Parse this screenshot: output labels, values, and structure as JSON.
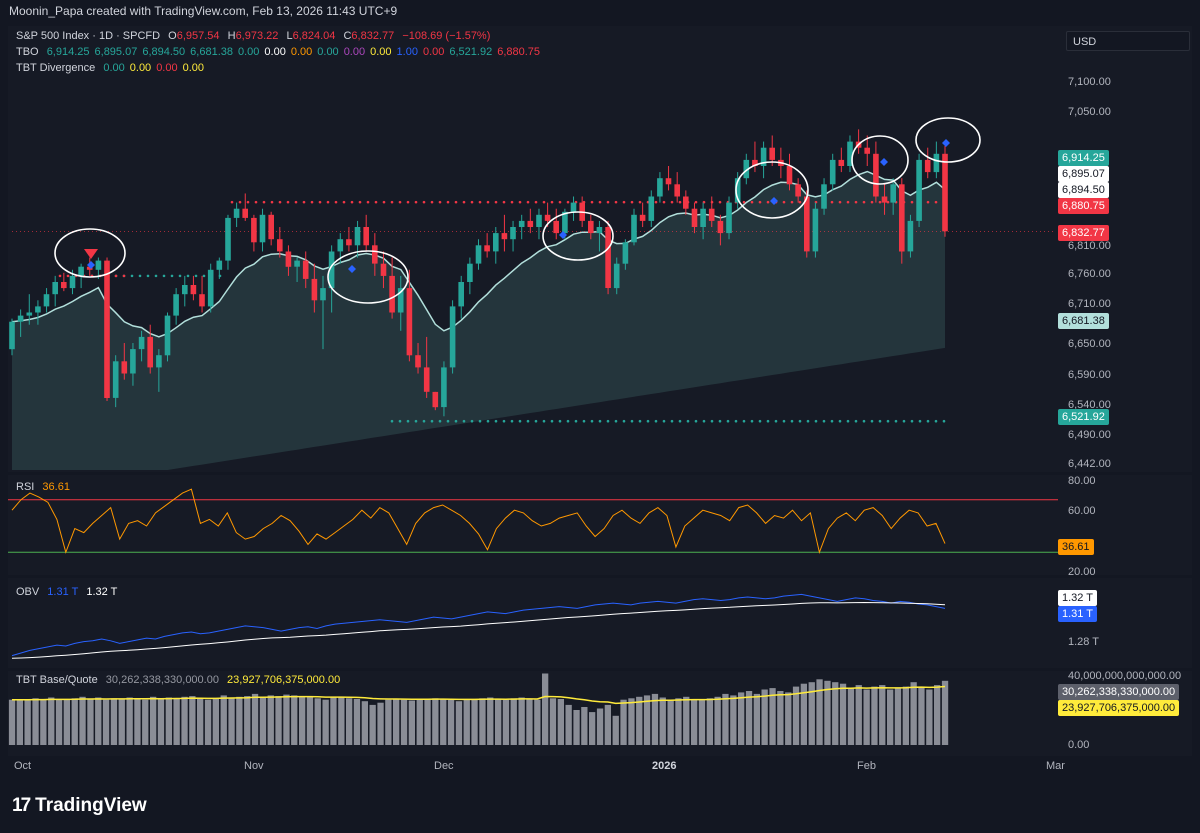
{
  "header": {
    "text": "Moonin_Papa created with TradingView.com, Feb 13, 2026 11:43 UTC+9"
  },
  "main_panel": {
    "legend_title": "S&P 500 Index · 1D · SPCFD",
    "ohlc": {
      "o_label": "O",
      "o": "6,957.54",
      "h_label": "H",
      "h": "6,973.22",
      "l_label": "L",
      "l": "6,824.04",
      "c_label": "C",
      "c": "6,832.77",
      "change": "−108.69 (−1.57%)"
    },
    "tbo_label": "TBO",
    "tbo_values": [
      {
        "v": "6,914.25",
        "color": "#26a69a"
      },
      {
        "v": "6,895.07",
        "color": "#26a69a"
      },
      {
        "v": "6,894.50",
        "color": "#26a69a"
      },
      {
        "v": "6,681.38",
        "color": "#26a69a"
      },
      {
        "v": "0.00",
        "color": "#26a69a"
      },
      {
        "v": "0.00",
        "color": "#ffffff"
      },
      {
        "v": "0.00",
        "color": "#ff9800"
      },
      {
        "v": "0.00",
        "color": "#26a69a"
      },
      {
        "v": "0.00",
        "color": "#ab47bc"
      },
      {
        "v": "0.00",
        "color": "#ffeb3b"
      },
      {
        "v": "1.00",
        "color": "#2962ff"
      },
      {
        "v": "0.00",
        "color": "#f23645"
      },
      {
        "v": "6,521.92",
        "color": "#26a69a"
      },
      {
        "v": "6,880.75",
        "color": "#f23645"
      }
    ],
    "div_label": "TBT Divergence",
    "div_values": [
      {
        "v": "0.00",
        "color": "#26a69a"
      },
      {
        "v": "0.00",
        "color": "#ffeb3b"
      },
      {
        "v": "0.00",
        "color": "#f23645"
      },
      {
        "v": "0.00",
        "color": "#ffeb3b"
      }
    ],
    "currency": "USD",
    "axis_ticks": [
      "7,100.00",
      "7,050.00",
      "6,810.00",
      "6,760.00",
      "6,710.00",
      "6,650.00",
      "6,590.00",
      "6,540.00",
      "6,490.00",
      "6,442.00"
    ],
    "price_tags": [
      {
        "v": "6,914.25",
        "bg": "#26a69a",
        "fg": "#ffffff"
      },
      {
        "v": "6,895.07",
        "bg": "#ffffff",
        "fg": "#131722"
      },
      {
        "v": "6,894.50",
        "bg": "#ffffff",
        "fg": "#131722"
      },
      {
        "v": "6,880.75",
        "bg": "#f23645",
        "fg": "#ffffff"
      },
      {
        "v": "6,832.77",
        "bg": "#f23645",
        "fg": "#ffffff"
      },
      {
        "v": "6,681.38",
        "bg": "#b2dfdb",
        "fg": "#131722"
      },
      {
        "v": "6,521.92",
        "bg": "#26a69a",
        "fg": "#ffffff"
      }
    ]
  },
  "rsi_panel": {
    "label": "RSI",
    "value": "36.61",
    "value_color": "#ff9800",
    "axis_ticks": [
      "80.00",
      "60.00",
      "20.00"
    ],
    "upper_band": 70,
    "lower_band": 30,
    "band_colors": {
      "upper": "#f23645",
      "lower": "#4caf50"
    }
  },
  "obv_panel": {
    "label": "OBV",
    "value1": "1.31 T",
    "value1_color": "#2962ff",
    "value2": "1.32 T",
    "value2_color": "#ffffff",
    "axis_ticks": [
      "1.28 T"
    ],
    "tags": [
      {
        "v": "1.32 T",
        "bg": "#ffffff",
        "fg": "#131722"
      },
      {
        "v": "1.31 T",
        "bg": "#2962ff",
        "fg": "#ffffff"
      }
    ]
  },
  "volume_panel": {
    "label": "TBT Base/Quote",
    "value1": "30,262,338,330,000.00",
    "value1_color": "#9598a1",
    "value2": "23,927,706,375,000.00",
    "value2_color": "#ffeb3b",
    "axis_ticks": [
      "40,000,000,000,000.00",
      "0.00"
    ],
    "tags": [
      {
        "v": "30,262,338,330,000.00",
        "bg": "#5d606b",
        "fg": "#ffffff"
      },
      {
        "v": "23,927,706,375,000.00",
        "bg": "#ffeb3b",
        "fg": "#131722"
      }
    ]
  },
  "x_axis": {
    "labels": [
      "Oct",
      "Nov",
      "Dec",
      "2026",
      "Feb",
      "Mar"
    ]
  },
  "footer": {
    "brand": "TradingView"
  },
  "chart_data": {
    "type": "line",
    "price_type": "candlestick",
    "ylim": [
      6442,
      7130
    ],
    "categories": [
      "Oct",
      "Nov",
      "Dec",
      "2026",
      "Feb",
      "Mar"
    ],
    "candles": [
      [
        6640,
        6690,
        6630,
        6685
      ],
      [
        6685,
        6705,
        6660,
        6695
      ],
      [
        6695,
        6730,
        6680,
        6700
      ],
      [
        6700,
        6720,
        6680,
        6710
      ],
      [
        6710,
        6740,
        6700,
        6730
      ],
      [
        6730,
        6760,
        6710,
        6750
      ],
      [
        6750,
        6765,
        6735,
        6740
      ],
      [
        6740,
        6770,
        6730,
        6760
      ],
      [
        6760,
        6780,
        6740,
        6775
      ],
      [
        6775,
        6790,
        6760,
        6770
      ],
      [
        6770,
        6790,
        6755,
        6785
      ],
      [
        6785,
        6790,
        6555,
        6560
      ],
      [
        6560,
        6630,
        6545,
        6620
      ],
      [
        6620,
        6650,
        6590,
        6600
      ],
      [
        6600,
        6650,
        6580,
        6640
      ],
      [
        6640,
        6670,
        6620,
        6660
      ],
      [
        6660,
        6680,
        6600,
        6610
      ],
      [
        6610,
        6640,
        6570,
        6630
      ],
      [
        6630,
        6700,
        6620,
        6695
      ],
      [
        6695,
        6740,
        6680,
        6730
      ],
      [
        6730,
        6760,
        6710,
        6745
      ],
      [
        6745,
        6760,
        6720,
        6730
      ],
      [
        6730,
        6760,
        6700,
        6710
      ],
      [
        6710,
        6780,
        6700,
        6770
      ],
      [
        6770,
        6790,
        6755,
        6785
      ],
      [
        6785,
        6860,
        6770,
        6855
      ],
      [
        6855,
        6880,
        6840,
        6870
      ],
      [
        6870,
        6895,
        6850,
        6855
      ],
      [
        6855,
        6860,
        6800,
        6815
      ],
      [
        6815,
        6870,
        6800,
        6860
      ],
      [
        6860,
        6865,
        6810,
        6820
      ],
      [
        6820,
        6840,
        6790,
        6800
      ],
      [
        6800,
        6810,
        6760,
        6775
      ],
      [
        6775,
        6790,
        6750,
        6785
      ],
      [
        6785,
        6800,
        6740,
        6755
      ],
      [
        6755,
        6780,
        6700,
        6720
      ],
      [
        6720,
        6760,
        6640,
        6740
      ],
      [
        6740,
        6810,
        6700,
        6800
      ],
      [
        6800,
        6830,
        6780,
        6820
      ],
      [
        6820,
        6840,
        6800,
        6810
      ],
      [
        6810,
        6850,
        6790,
        6840
      ],
      [
        6840,
        6860,
        6800,
        6810
      ],
      [
        6810,
        6830,
        6760,
        6780
      ],
      [
        6780,
        6800,
        6740,
        6760
      ],
      [
        6760,
        6790,
        6690,
        6700
      ],
      [
        6700,
        6760,
        6670,
        6740
      ],
      [
        6740,
        6770,
        6620,
        6630
      ],
      [
        6630,
        6650,
        6600,
        6610
      ],
      [
        6610,
        6660,
        6560,
        6570
      ],
      [
        6570,
        6570,
        6540,
        6545
      ],
      [
        6545,
        6620,
        6530,
        6610
      ],
      [
        6610,
        6720,
        6600,
        6710
      ],
      [
        6710,
        6760,
        6690,
        6750
      ],
      [
        6750,
        6790,
        6730,
        6780
      ],
      [
        6780,
        6820,
        6770,
        6810
      ],
      [
        6810,
        6830,
        6790,
        6800
      ],
      [
        6800,
        6840,
        6780,
        6830
      ],
      [
        6830,
        6860,
        6800,
        6820
      ],
      [
        6820,
        6850,
        6800,
        6840
      ],
      [
        6840,
        6860,
        6820,
        6850
      ],
      [
        6850,
        6870,
        6830,
        6840
      ],
      [
        6840,
        6870,
        6820,
        6860
      ],
      [
        6860,
        6880,
        6840,
        6850
      ],
      [
        6850,
        6870,
        6820,
        6830
      ],
      [
        6830,
        6870,
        6820,
        6865
      ],
      [
        6865,
        6890,
        6850,
        6880
      ],
      [
        6880,
        6890,
        6840,
        6850
      ],
      [
        6850,
        6860,
        6820,
        6830
      ],
      [
        6830,
        6850,
        6800,
        6840
      ],
      [
        6840,
        6850,
        6730,
        6740
      ],
      [
        6740,
        6790,
        6730,
        6780
      ],
      [
        6780,
        6820,
        6770,
        6815
      ],
      [
        6815,
        6870,
        6810,
        6860
      ],
      [
        6860,
        6880,
        6840,
        6850
      ],
      [
        6850,
        6900,
        6840,
        6890
      ],
      [
        6890,
        6930,
        6880,
        6920
      ],
      [
        6920,
        6940,
        6900,
        6910
      ],
      [
        6910,
        6930,
        6880,
        6890
      ],
      [
        6890,
        6900,
        6860,
        6870
      ],
      [
        6870,
        6880,
        6830,
        6840
      ],
      [
        6840,
        6880,
        6820,
        6870
      ],
      [
        6870,
        6890,
        6840,
        6850
      ],
      [
        6850,
        6860,
        6810,
        6830
      ],
      [
        6830,
        6890,
        6820,
        6880
      ],
      [
        6880,
        6930,
        6870,
        6920
      ],
      [
        6920,
        6960,
        6910,
        6950
      ],
      [
        6950,
        6980,
        6930,
        6940
      ],
      [
        6940,
        6980,
        6920,
        6970
      ],
      [
        6970,
        6990,
        6940,
        6950
      ],
      [
        6950,
        6970,
        6920,
        6940
      ],
      [
        6940,
        6960,
        6900,
        6910
      ],
      [
        6910,
        6920,
        6880,
        6890
      ],
      [
        6890,
        6900,
        6790,
        6800
      ],
      [
        6800,
        6880,
        6790,
        6870
      ],
      [
        6870,
        6920,
        6860,
        6910
      ],
      [
        6910,
        6960,
        6900,
        6950
      ],
      [
        6950,
        6970,
        6930,
        6940
      ],
      [
        6940,
        6990,
        6930,
        6980
      ],
      [
        6980,
        7000,
        6960,
        6970
      ],
      [
        6970,
        6990,
        6940,
        6960
      ],
      [
        6960,
        6980,
        6880,
        6890
      ],
      [
        6890,
        6910,
        6860,
        6880
      ],
      [
        6880,
        6920,
        6860,
        6910
      ],
      [
        6910,
        6920,
        6780,
        6800
      ],
      [
        6800,
        6860,
        6790,
        6850
      ],
      [
        6850,
        6960,
        6840,
        6950
      ],
      [
        6950,
        6970,
        6920,
        6930
      ],
      [
        6930,
        6980,
        6920,
        6960
      ],
      [
        6960,
        6973,
        6824,
        6833
      ]
    ],
    "rsi": [
      62,
      70,
      75,
      72,
      68,
      55,
      30,
      48,
      45,
      52,
      58,
      64,
      40,
      52,
      54,
      50,
      60,
      65,
      70,
      75,
      78,
      52,
      55,
      50,
      60,
      45,
      40,
      42,
      48,
      52,
      58,
      54,
      46,
      36,
      44,
      40,
      45,
      50,
      55,
      62,
      56,
      64,
      60,
      48,
      36,
      52,
      60,
      64,
      66,
      62,
      58,
      52,
      44,
      32,
      48,
      56,
      62,
      60,
      54,
      50,
      52,
      56,
      58,
      60,
      50,
      42,
      48,
      58,
      62,
      56,
      52,
      60,
      64,
      58,
      34,
      50,
      56,
      62,
      60,
      58,
      54,
      64,
      66,
      60,
      52,
      58,
      56,
      62,
      54,
      60,
      30,
      48,
      56,
      60,
      54,
      62,
      64,
      58,
      48,
      56,
      62,
      60,
      50,
      52,
      36.61
    ],
    "obv": [
      0.3,
      0.33,
      0.36,
      0.38,
      0.4,
      0.42,
      0.41,
      0.44,
      0.46,
      0.47,
      0.49,
      0.47,
      0.44,
      0.46,
      0.48,
      0.5,
      0.49,
      0.52,
      0.54,
      0.56,
      0.57,
      0.55,
      0.56,
      0.58,
      0.6,
      0.62,
      0.64,
      0.63,
      0.62,
      0.6,
      0.58,
      0.6,
      0.62,
      0.63,
      0.61,
      0.64,
      0.66,
      0.67,
      0.68,
      0.69,
      0.7,
      0.71,
      0.7,
      0.69,
      0.68,
      0.7,
      0.72,
      0.74,
      0.73,
      0.72,
      0.74,
      0.76,
      0.78,
      0.8,
      0.79,
      0.78,
      0.8,
      0.82,
      0.83,
      0.84,
      0.85,
      0.86,
      0.85,
      0.84,
      0.86,
      0.88,
      0.89,
      0.9,
      0.89,
      0.88,
      0.9,
      0.91,
      0.92,
      0.91,
      0.9,
      0.92,
      0.94,
      0.95,
      0.94,
      0.93,
      0.94,
      0.96,
      0.97,
      0.96,
      0.95,
      0.96,
      0.98,
      0.99,
      1.0,
      0.98,
      0.96,
      0.94,
      0.92,
      0.94,
      0.96,
      0.95,
      0.93,
      0.92,
      0.9,
      0.92,
      0.91,
      0.89,
      0.88,
      0.86,
      0.84
    ],
    "volume": [
      0.62,
      0.63,
      0.61,
      0.64,
      0.62,
      0.65,
      0.63,
      0.62,
      0.64,
      0.66,
      0.63,
      0.65,
      0.62,
      0.64,
      0.63,
      0.65,
      0.64,
      0.62,
      0.66,
      0.63,
      0.65,
      0.64,
      0.66,
      0.67,
      0.63,
      0.62,
      0.64,
      0.68,
      0.65,
      0.66,
      0.67,
      0.7,
      0.66,
      0.68,
      0.67,
      0.69,
      0.68,
      0.67,
      0.66,
      0.64,
      0.62,
      0.65,
      0.66,
      0.64,
      0.63,
      0.6,
      0.55,
      0.58,
      0.62,
      0.63,
      0.62,
      0.61,
      0.63,
      0.62,
      0.64,
      0.63,
      0.62,
      0.6,
      0.62,
      0.63,
      0.64,
      0.65,
      0.63,
      0.62,
      0.64,
      0.65,
      0.63,
      0.62,
      0.98,
      0.64,
      0.63,
      0.55,
      0.48,
      0.52,
      0.45,
      0.5,
      0.55,
      0.4,
      0.62,
      0.64,
      0.66,
      0.68,
      0.7,
      0.65,
      0.62,
      0.64,
      0.66,
      0.63,
      0.62,
      0.64,
      0.66,
      0.7,
      0.68,
      0.72,
      0.74,
      0.7,
      0.76,
      0.78,
      0.74,
      0.72,
      0.8,
      0.84,
      0.86,
      0.9,
      0.88,
      0.86,
      0.84,
      0.78,
      0.82,
      0.76,
      0.8,
      0.82,
      0.76,
      0.78,
      0.8,
      0.86,
      0.8,
      0.76,
      0.82,
      0.88
    ]
  }
}
